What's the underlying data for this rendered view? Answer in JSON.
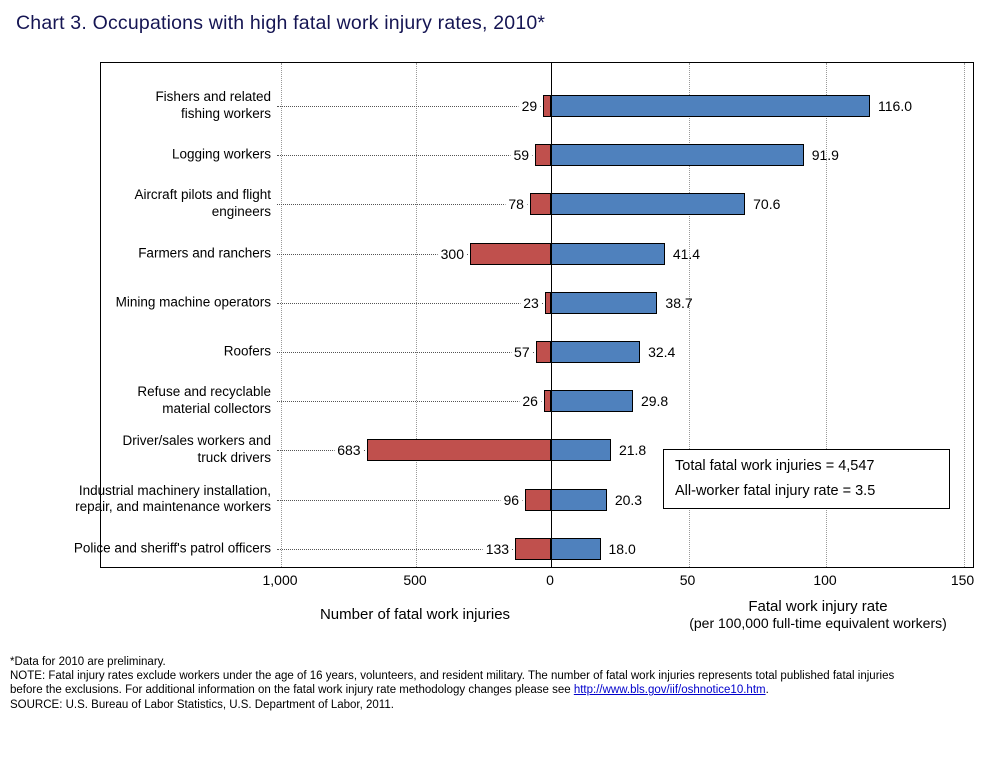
{
  "chart_data": {
    "type": "bar",
    "orientation": "horizontal-diverging",
    "title": "Chart 3. Occupations with high fatal work injury rates, 2010*",
    "categories": [
      "Fishers and related fishing workers",
      "Logging workers",
      "Aircraft pilots and flight engineers",
      "Farmers and ranchers",
      "Mining machine operators",
      "Roofers",
      "Refuse and recyclable material collectors",
      "Driver/sales workers and truck drivers",
      "Industrial machinery installation, repair, and maintenance workers",
      "Police and sheriff's patrol officers"
    ],
    "category_label_lines": [
      [
        "Fishers and related",
        "fishing workers"
      ],
      [
        "Logging workers"
      ],
      [
        "Aircraft pilots and flight",
        "engineers"
      ],
      [
        "Farmers and ranchers"
      ],
      [
        "Mining machine operators"
      ],
      [
        "Roofers"
      ],
      [
        "Refuse and recyclable",
        "material collectors"
      ],
      [
        "Driver/sales workers and",
        "truck drivers"
      ],
      [
        "Industrial machinery installation,",
        "repair, and maintenance workers"
      ],
      [
        "Police and sheriff's patrol officers"
      ]
    ],
    "series": [
      {
        "name": "Number of fatal work injuries",
        "direction": "left",
        "color": "#C0504D",
        "values": [
          29,
          59,
          78,
          300,
          23,
          57,
          26,
          683,
          96,
          133
        ],
        "labels": [
          "29",
          "59",
          "78",
          "300",
          "23",
          "57",
          "26",
          "683",
          "96",
          "133"
        ]
      },
      {
        "name": "Fatal work injury rate",
        "direction": "right",
        "color": "#4F81BD",
        "values": [
          116.0,
          91.9,
          70.6,
          41.4,
          38.7,
          32.4,
          29.8,
          21.8,
          20.3,
          18.0
        ],
        "labels": [
          "116.0",
          "91.9",
          "70.6",
          "41.4",
          "38.7",
          "32.4",
          "29.8",
          "21.8",
          "20.3",
          "18.0"
        ]
      }
    ],
    "left_axis": {
      "label": "Number of fatal work injuries",
      "min": 0,
      "max": 1000,
      "grid_values": [
        1000,
        500
      ],
      "ticks": [
        {
          "label": "1,000",
          "value": 1000
        },
        {
          "label": "500",
          "value": 500
        },
        {
          "label": "0",
          "value": 0
        }
      ]
    },
    "right_axis": {
      "label_line1": "Fatal work injury rate",
      "label_line2": "(per 100,000 full-time equivalent workers)",
      "min": 0,
      "max": 150,
      "grid_values": [
        50,
        100,
        150
      ],
      "ticks": [
        {
          "label": "50",
          "value": 50
        },
        {
          "label": "100",
          "value": 100
        },
        {
          "label": "150",
          "value": 150
        }
      ]
    },
    "grid": true,
    "legend": false,
    "annotation": {
      "line1": "Total fatal work injuries = 4,547",
      "line2": "All-worker fatal injury rate = 3.5"
    }
  },
  "footnotes": {
    "preliminary": "*Data for 2010 are preliminary.",
    "note_line1": "NOTE: Fatal injury rates exclude workers under the age of 16 years, volunteers, and resident military. The number of fatal work injuries represents total published fatal injuries",
    "note_line2_prefix": "before the exclusions. For additional information on the fatal work injury rate methodology changes please see ",
    "note_link": "http://www.bls.gov/iif/oshnotice10.htm",
    "note_line2_suffix": ".",
    "source": "SOURCE: U.S. Bureau of Labor Statistics, U.S. Department of Labor, 2011."
  }
}
